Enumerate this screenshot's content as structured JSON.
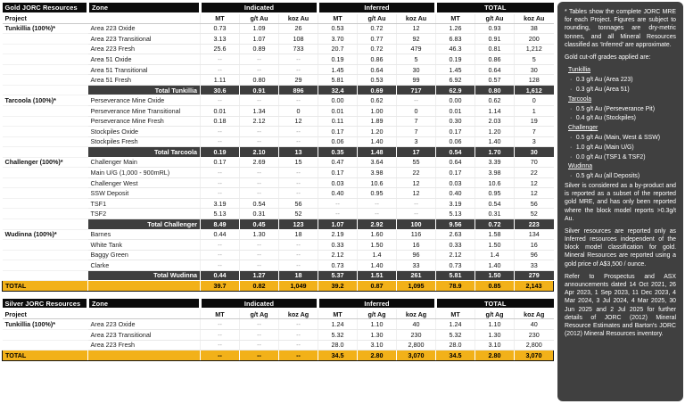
{
  "colors": {
    "header_black": "#0b0b0b",
    "section_total_gray": "#3e3e3e",
    "grand_total_gold": "#F2B119",
    "notes_panel_bg": "#404040"
  },
  "gold_table": {
    "name": "gold-resources-table",
    "title": "Gold JORC Resources",
    "zone_header": "Zone",
    "project_label": "Project",
    "groups": [
      "Indicated",
      "Inferred",
      "TOTAL"
    ],
    "unit_headers": [
      "MT",
      "g/t Au",
      "koz Au"
    ],
    "sections": [
      {
        "project": "Tunkillia (100%)*",
        "rows": [
          {
            "zone": "Area 223 Oxide",
            "values": [
              "0.73",
              "1.09",
              "26",
              "0.53",
              "0.72",
              "12",
              "1.26",
              "0.93",
              "38"
            ]
          },
          {
            "zone": "Area 223 Transitional",
            "values": [
              "3.13",
              "1.07",
              "108",
              "3.70",
              "0.77",
              "92",
              "6.83",
              "0.91",
              "200"
            ]
          },
          {
            "zone": "Area 223 Fresh",
            "values": [
              "25.6",
              "0.89",
              "733",
              "20.7",
              "0.72",
              "479",
              "46.3",
              "0.81",
              "1,212"
            ]
          },
          {
            "zone": "Area 51 Oxide",
            "values": [
              "--",
              "--",
              "--",
              "0.19",
              "0.86",
              "5",
              "0.19",
              "0.86",
              "5"
            ]
          },
          {
            "zone": "Area 51 Transitional",
            "values": [
              "--",
              "--",
              "--",
              "1.45",
              "0.64",
              "30",
              "1.45",
              "0.64",
              "30"
            ]
          },
          {
            "zone": "Area 51 Fresh",
            "values": [
              "1.11",
              "0.80",
              "29",
              "5.81",
              "0.53",
              "99",
              "6.92",
              "0.57",
              "128"
            ]
          }
        ],
        "total": {
          "label": "Total Tunkillia",
          "values": [
            "30.6",
            "0.91",
            "896",
            "32.4",
            "0.69",
            "717",
            "62.9",
            "0.80",
            "1,612"
          ]
        }
      },
      {
        "project": "Tarcoola (100%)*",
        "rows": [
          {
            "zone": "Perseverance Mine Oxide",
            "values": [
              "--",
              "--",
              "--",
              "0.00",
              "0.62",
              "--",
              "0.00",
              "0.62",
              "0"
            ]
          },
          {
            "zone": "Perseverance Mine Transitional",
            "values": [
              "0.01",
              "1.34",
              "0",
              "0.01",
              "1.00",
              "0",
              "0.01",
              "1.14",
              "1"
            ]
          },
          {
            "zone": "Perseverance Mine Fresh",
            "values": [
              "0.18",
              "2.12",
              "12",
              "0.11",
              "1.89",
              "7",
              "0.30",
              "2.03",
              "19"
            ]
          },
          {
            "zone": "Stockpiles Oxide",
            "values": [
              "--",
              "--",
              "--",
              "0.17",
              "1.20",
              "7",
              "0.17",
              "1.20",
              "7"
            ]
          },
          {
            "zone": "Stockpiles Fresh",
            "values": [
              "--",
              "--",
              "--",
              "0.06",
              "1.40",
              "3",
              "0.06",
              "1.40",
              "3"
            ]
          }
        ],
        "total": {
          "label": "Total Tarcoola",
          "values": [
            "0.19",
            "2.10",
            "13",
            "0.35",
            "1.48",
            "17",
            "0.54",
            "1.70",
            "30"
          ]
        }
      },
      {
        "project": "Challenger (100%)*",
        "rows": [
          {
            "zone": "Challenger Main",
            "values": [
              "0.17",
              "2.69",
              "15",
              "0.47",
              "3.64",
              "55",
              "0.64",
              "3.39",
              "70"
            ]
          },
          {
            "zone": "Main U/G (1,000 - 900mRL)",
            "values": [
              "--",
              "--",
              "--",
              "0.17",
              "3.98",
              "22",
              "0.17",
              "3.98",
              "22"
            ]
          },
          {
            "zone": "Challenger West",
            "values": [
              "--",
              "--",
              "--",
              "0.03",
              "10.6",
              "12",
              "0.03",
              "10.6",
              "12"
            ]
          },
          {
            "zone": "SSW Deposit",
            "values": [
              "--",
              "--",
              "--",
              "0.40",
              "0.95",
              "12",
              "0.40",
              "0.95",
              "12"
            ]
          },
          {
            "zone": "TSF1",
            "values": [
              "3.19",
              "0.54",
              "56",
              "--",
              "--",
              "--",
              "3.19",
              "0.54",
              "56"
            ]
          },
          {
            "zone": "TSF2",
            "values": [
              "5.13",
              "0.31",
              "52",
              "--",
              "--",
              "--",
              "5.13",
              "0.31",
              "52"
            ]
          }
        ],
        "total": {
          "label": "Total Challenger",
          "values": [
            "8.49",
            "0.45",
            "123",
            "1.07",
            "2.92",
            "100",
            "9.56",
            "0.72",
            "223"
          ]
        }
      },
      {
        "project": "Wudinna (100%)*",
        "rows": [
          {
            "zone": "Barnes",
            "values": [
              "0.44",
              "1.30",
              "18",
              "2.19",
              "1.60",
              "116",
              "2.63",
              "1.58",
              "134"
            ]
          },
          {
            "zone": "White Tank",
            "values": [
              "--",
              "--",
              "--",
              "0.33",
              "1.50",
              "16",
              "0.33",
              "1.50",
              "16"
            ]
          },
          {
            "zone": "Baggy Green",
            "values": [
              "--",
              "--",
              "--",
              "2.12",
              "1.4",
              "96",
              "2.12",
              "1.4",
              "96"
            ]
          },
          {
            "zone": "Clarke",
            "values": [
              "--",
              "--",
              "--",
              "0.73",
              "1.40",
              "33",
              "0.73",
              "1.40",
              "33"
            ]
          }
        ],
        "total": {
          "label": "Total Wudinna",
          "values": [
            "0.44",
            "1.27",
            "18",
            "5.37",
            "1.51",
            "261",
            "5.81",
            "1.50",
            "279"
          ]
        }
      }
    ],
    "grand_total": {
      "label": "TOTAL",
      "values": [
        "39.7",
        "0.82",
        "1,049",
        "39.2",
        "0.87",
        "1,095",
        "78.9",
        "0.85",
        "2,143"
      ]
    }
  },
  "silver_table": {
    "name": "silver-resources-table",
    "title": "Silver JORC Resources",
    "zone_header": "Zone",
    "project_label": "Project",
    "groups": [
      "Indicated",
      "Inferred",
      "TOTAL"
    ],
    "unit_headers": [
      "MT",
      "g/t Ag",
      "koz Ag"
    ],
    "sections": [
      {
        "project": "Tunkillia (100%)*",
        "rows": [
          {
            "zone": "Area 223 Oxide",
            "values": [
              "--",
              "--",
              "--",
              "1.24",
              "1.10",
              "40",
              "1.24",
              "1.10",
              "40"
            ]
          },
          {
            "zone": "Area 223 Transitional",
            "values": [
              "--",
              "--",
              "--",
              "5.32",
              "1.30",
              "230",
              "5.32",
              "1.30",
              "230"
            ]
          },
          {
            "zone": "Area 223 Fresh",
            "values": [
              "--",
              "--",
              "--",
              "28.0",
              "3.10",
              "2,800",
              "28.0",
              "3.10",
              "2,800"
            ]
          }
        ],
        "total": null
      }
    ],
    "grand_total": {
      "label": "TOTAL",
      "values": [
        "--",
        "--",
        "--",
        "34.5",
        "2.80",
        "3,070",
        "34.5",
        "2.80",
        "3,070"
      ]
    }
  },
  "notes": {
    "para1": "* Tables show the complete JORC MRE for each Project. Figures are subject to rounding, tonnages are dry-metric tonnes, and all Mineral Resources classified as ‘Inferred’ are approximate.",
    "cutoff_intro": "Gold cut-off grades applied are:",
    "cutoffs": [
      {
        "project": "Tunkillia",
        "items": [
          "0.3 g/t Au (Area 223)",
          "0.3 g/t Au (Area 51)"
        ]
      },
      {
        "project": "Tarcoola",
        "items": [
          "0.5 g/t Au (Perseverance Pit)",
          "0.4 g/t Au (Stockpiles)"
        ]
      },
      {
        "project": "Challenger",
        "items": [
          "0.5 g/t Au (Main, West & SSW)",
          "1.0 g/t Au (Main U/G)",
          "0.0 g/t Au (TSF1 & TSF2)"
        ]
      },
      {
        "project": "Wudinna",
        "items": [
          "0.5 g/t Au (all Deposits)"
        ]
      }
    ],
    "para_silver1": "Silver is considered as a by-product and is reported as a subset of the reported gold MRE, and has only been reported where the block model reports >0.3g/t Au.",
    "para_silver2": "Silver resources are reported only as Inferred resources independent of the block model classification for gold. Mineral Resources are reported using a gold price of A$3,500 / ounce.",
    "para_refer": "Refer to Prospectus and ASX announcements dated 14 Oct 2021, 26 Apr 2023, 1 Sep 2023, 11 Dec 2023, 4 Mar 2024, 3 Jul 2024, 4 Mar 2025, 30 Jun 2025 and 2 Jul 2025 for further details of JORC (2012) Mineral Resource Estimates and Barton's JORC (2012) Mineral Resources inventory."
  }
}
